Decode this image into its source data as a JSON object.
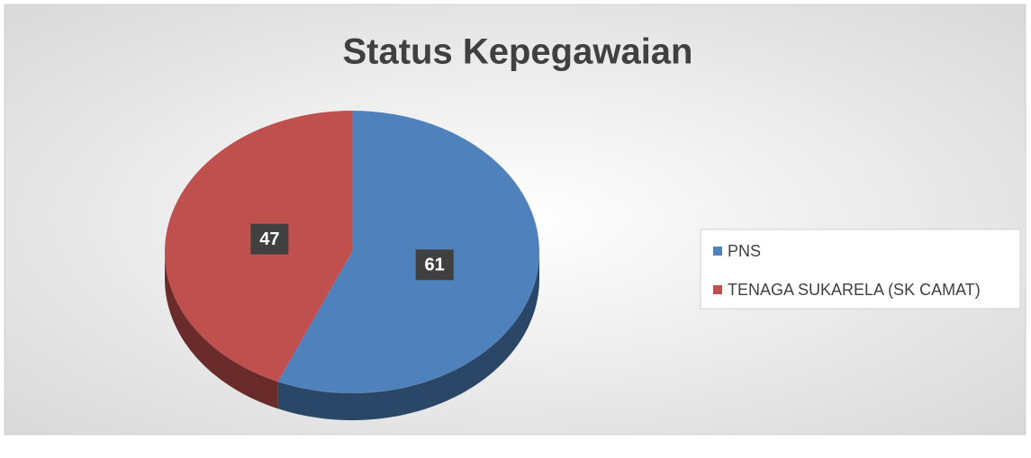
{
  "chart_data": {
    "type": "pie",
    "title": "Status Kepegawaian",
    "categories": [
      "PNS",
      "TENAGA SUKARELA (SK CAMAT)"
    ],
    "values": [
      61,
      47
    ],
    "colors": [
      "#4f81bd",
      "#c0504d"
    ],
    "legend": "right"
  }
}
